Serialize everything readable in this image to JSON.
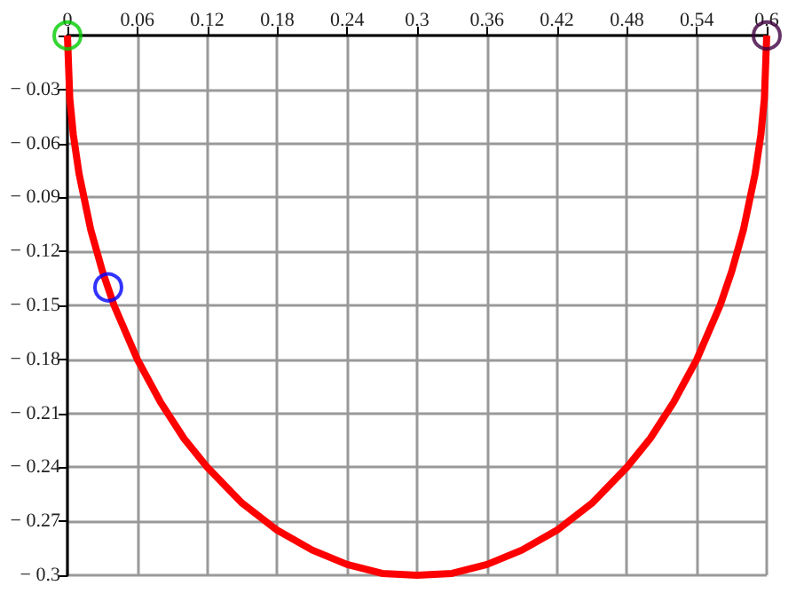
{
  "chart_data": {
    "type": "line",
    "xlim": [
      0,
      0.6
    ],
    "xticks": [
      0,
      0.06,
      0.12,
      0.18,
      0.24,
      0.3,
      0.36,
      0.42,
      0.48,
      0.54,
      0.6
    ],
    "ylim": [
      -0.3,
      0
    ],
    "yticks": [
      {
        "value": 0,
        "label": null
      },
      {
        "value": -0.03,
        "label": "− 0.03"
      },
      {
        "value": -0.06,
        "label": "− 0.06"
      },
      {
        "value": -0.09,
        "label": "− 0.09"
      },
      {
        "value": -0.12,
        "label": "− 0.12"
      },
      {
        "value": -0.15,
        "label": "− 0.15"
      },
      {
        "value": -0.18,
        "label": "− 0.18"
      },
      {
        "value": -0.21,
        "label": "− 0.21"
      },
      {
        "value": -0.24,
        "label": "− 0.24"
      },
      {
        "value": -0.27,
        "label": "− 0.27"
      },
      {
        "value": -0.3,
        "label": "− 0.3"
      }
    ],
    "grid": true,
    "series": [
      {
        "type": "line",
        "color": "#ff0000",
        "marker": "none",
        "x": [
          0,
          0.002,
          0.005,
          0.01,
          0.02,
          0.03,
          0.04,
          0.06,
          0.08,
          0.1,
          0.12,
          0.15,
          0.18,
          0.21,
          0.24,
          0.27,
          0.3,
          0.33,
          0.36,
          0.39,
          0.42,
          0.45,
          0.48,
          0.5,
          0.52,
          0.54,
          0.56,
          0.57,
          0.58,
          0.59,
          0.595,
          0.598,
          0.6
        ],
        "values": [
          0,
          -0.035,
          -0.055,
          -0.077,
          -0.108,
          -0.131,
          -0.15,
          -0.18,
          -0.204,
          -0.224,
          -0.24,
          -0.26,
          -0.275,
          -0.286,
          -0.294,
          -0.299,
          -0.3,
          -0.299,
          -0.294,
          -0.286,
          -0.275,
          -0.26,
          -0.24,
          -0.224,
          -0.204,
          -0.18,
          -0.15,
          -0.131,
          -0.108,
          -0.077,
          -0.055,
          -0.035,
          0
        ]
      },
      {
        "type": "scatter",
        "color": "#0000ff",
        "marker": "circle",
        "x": [
          0.035
        ],
        "values": [
          -0.14
        ]
      },
      {
        "type": "scatter",
        "color": "#00cc00",
        "marker": "circle",
        "x": [
          0
        ],
        "values": [
          0
        ]
      },
      {
        "type": "scatter",
        "color": "#400040",
        "marker": "circle",
        "x": [
          0.6
        ],
        "values": [
          0
        ]
      }
    ]
  }
}
